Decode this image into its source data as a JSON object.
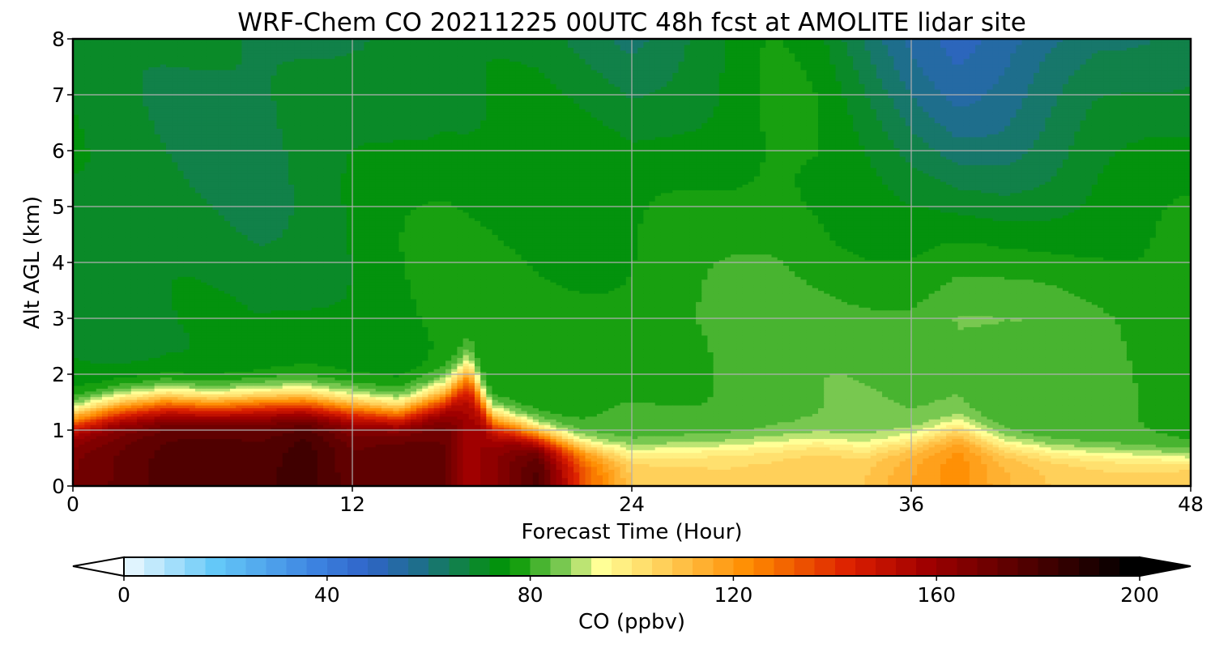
{
  "chart_data": {
    "type": "heatmap",
    "title": "WRF-Chem CO  20211225 00UTC 48h fcst at AMOLITE lidar site",
    "xlabel": "Forecast Time (Hour)",
    "ylabel": "Alt AGL (km)",
    "xlim": [
      0,
      48
    ],
    "ylim": [
      0,
      8
    ],
    "x_ticks": [
      "0",
      "12",
      "24",
      "36",
      "48"
    ],
    "y_ticks": [
      "0",
      "1",
      "2",
      "3",
      "4",
      "5",
      "6",
      "7",
      "8"
    ],
    "grid": true,
    "colorbar": {
      "label": "CO  (ppbv)",
      "range": [
        0,
        200
      ],
      "ticks": [
        "0",
        "40",
        "80",
        "120",
        "160",
        "200"
      ],
      "extend": "both"
    },
    "colormap": [
      {
        "v": 0,
        "c": "#ffffff"
      },
      {
        "v": 20,
        "c": "#64c8f8"
      },
      {
        "v": 40,
        "c": "#3c82e0"
      },
      {
        "v": 50,
        "c": "#2f64c8"
      },
      {
        "v": 60,
        "c": "#1e6e8c"
      },
      {
        "v": 72,
        "c": "#0a8a28"
      },
      {
        "v": 78,
        "c": "#009600"
      },
      {
        "v": 88,
        "c": "#78c850"
      },
      {
        "v": 96,
        "c": "#ffff96"
      },
      {
        "v": 110,
        "c": "#ffc850"
      },
      {
        "v": 125,
        "c": "#ff8c00"
      },
      {
        "v": 145,
        "c": "#dc1e00"
      },
      {
        "v": 160,
        "c": "#a00000"
      },
      {
        "v": 180,
        "c": "#500000"
      },
      {
        "v": 200,
        "c": "#000000"
      }
    ],
    "surface_profile": {
      "hours": [
        0,
        2,
        4,
        6,
        8,
        10,
        12,
        14,
        16,
        17,
        18,
        20,
        22,
        24,
        26,
        28,
        30,
        32,
        34,
        36,
        38,
        40,
        42,
        44,
        46,
        48
      ],
      "surface_co": [
        170,
        175,
        180,
        182,
        180,
        185,
        175,
        178,
        175,
        160,
        165,
        180,
        135,
        110,
        108,
        107,
        108,
        110,
        110,
        118,
        125,
        115,
        110,
        108,
        108,
        110
      ],
      "boundary_layer_km": [
        1.2,
        1.4,
        1.5,
        1.45,
        1.5,
        1.5,
        1.4,
        1.3,
        1.6,
        2.0,
        1.2,
        0.9,
        0.7,
        0.6,
        0.65,
        0.7,
        0.75,
        0.8,
        0.7,
        0.8,
        1.0,
        0.75,
        0.65,
        0.6,
        0.55,
        0.5
      ]
    },
    "upper_profile": {
      "hours": [
        0,
        4,
        8,
        12,
        16,
        20,
        24,
        28,
        30,
        32,
        36,
        38,
        40,
        44,
        48
      ],
      "co_upper": [
        74,
        74,
        72,
        75,
        79,
        79,
        82,
        84,
        85,
        84,
        84,
        86,
        84,
        82,
        80
      ],
      "co_top": [
        72,
        70,
        68,
        72,
        74,
        72,
        66,
        72,
        76,
        74,
        58,
        52,
        55,
        66,
        70
      ]
    }
  }
}
